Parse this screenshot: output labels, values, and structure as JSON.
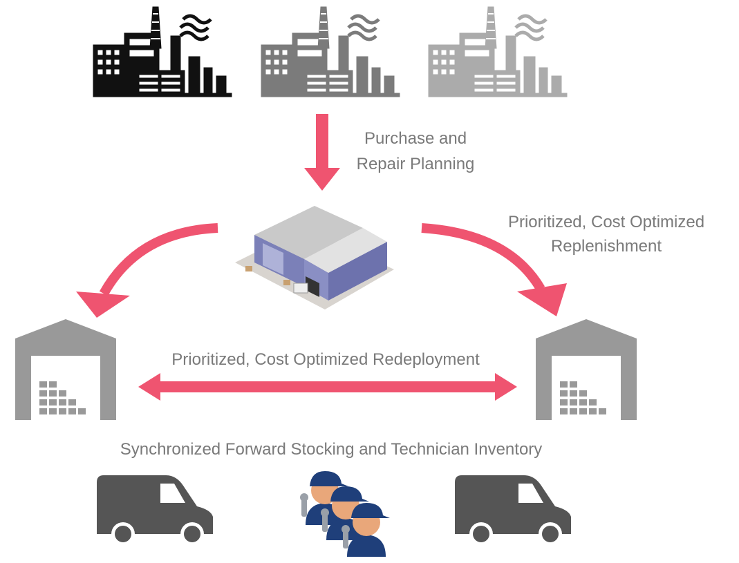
{
  "labels": {
    "purchase": [
      "Purchase and",
      "Repair Planning"
    ],
    "replenishment": [
      "Prioritized, Cost Optimized",
      "Replenishment"
    ],
    "redeployment": "Prioritized, Cost Optimized Redeployment",
    "forward": "Synchronized Forward Stocking and Technician Inventory"
  }
}
